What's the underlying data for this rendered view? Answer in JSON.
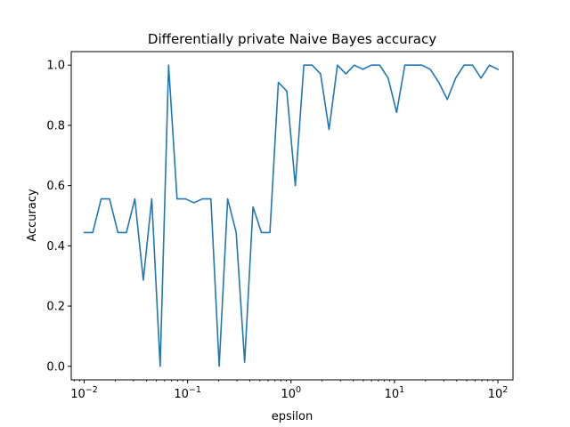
{
  "chart_data": {
    "type": "line",
    "title": "Differentially private Naive Bayes accuracy",
    "xlabel": "epsilon",
    "ylabel": "Accuracy",
    "xscale": "log",
    "xlim": [
      0.0075,
      140
    ],
    "ylim": [
      -0.045,
      1.045
    ],
    "grid": false,
    "x_ticks": [
      {
        "value": 0.01,
        "base": "10",
        "exp": "−2"
      },
      {
        "value": 0.1,
        "base": "10",
        "exp": "−1"
      },
      {
        "value": 1,
        "base": "10",
        "exp": "0"
      },
      {
        "value": 10,
        "base": "10",
        "exp": "1"
      },
      {
        "value": 100,
        "base": "10",
        "exp": "2"
      }
    ],
    "y_ticks": [
      {
        "value": 0.0,
        "label": "0.0"
      },
      {
        "value": 0.2,
        "label": "0.2"
      },
      {
        "value": 0.4,
        "label": "0.4"
      },
      {
        "value": 0.6,
        "label": "0.6"
      },
      {
        "value": 0.8,
        "label": "0.8"
      },
      {
        "value": 1.0,
        "label": "1.0"
      }
    ],
    "series": [
      {
        "color": "#1f77b4",
        "x": [
          0.01,
          0.0121,
          0.0146,
          0.0176,
          0.0212,
          0.0256,
          0.0309,
          0.0373,
          0.045,
          0.0543,
          0.0655,
          0.0791,
          0.0954,
          0.115,
          0.139,
          0.168,
          0.202,
          0.244,
          0.295,
          0.356,
          0.429,
          0.518,
          0.625,
          0.754,
          0.91,
          1.1,
          1.33,
          1.6,
          1.93,
          2.33,
          2.81,
          3.39,
          4.09,
          4.94,
          5.96,
          7.2,
          8.69,
          10.5,
          12.6,
          15.3,
          18.4,
          22.2,
          26.8,
          32.4,
          39.1,
          47.1,
          56.9,
          68.7,
          82.9,
          100
        ],
        "y": [
          0.444,
          0.444,
          0.556,
          0.556,
          0.444,
          0.444,
          0.556,
          0.286,
          0.556,
          0.0,
          1.0,
          0.556,
          0.556,
          0.543,
          0.556,
          0.556,
          0.0,
          0.556,
          0.444,
          0.014,
          0.529,
          0.444,
          0.444,
          0.943,
          0.914,
          0.6,
          1.0,
          1.0,
          0.971,
          0.786,
          1.0,
          0.971,
          1.0,
          0.986,
          1.0,
          1.0,
          0.957,
          0.843,
          1.0,
          1.0,
          1.0,
          0.986,
          0.943,
          0.886,
          0.957,
          1.0,
          1.0,
          0.957,
          1.0,
          0.986
        ]
      }
    ]
  }
}
